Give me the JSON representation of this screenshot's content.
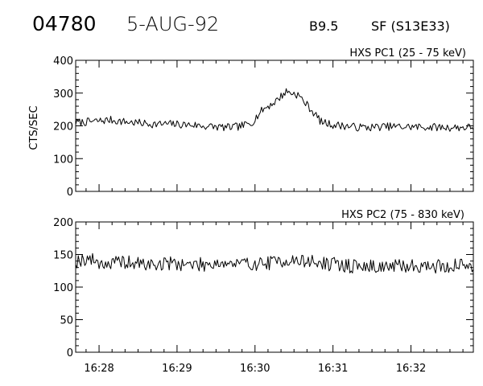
{
  "header": {
    "event_number": "04780",
    "date": "5-AUG-92",
    "goes_class": "B9.5",
    "location": "SF (S13E33)"
  },
  "chart_data": [
    {
      "type": "line",
      "title": "HXS PC1 (25 - 75 keV)",
      "ylabel": "CTS/SEC",
      "ylim": [
        0,
        400
      ],
      "yticks": [
        "0",
        "100",
        "200",
        "300",
        "400"
      ],
      "xlim": [
        "16:27:42",
        "16:32:48"
      ],
      "xticks": [
        "16:28",
        "16:29",
        "16:30",
        "16:31",
        "16:32"
      ],
      "series": [
        {
          "x": [
            "16:27:42",
            "16:27:51",
            "16:28:00",
            "16:28:09",
            "16:28:18",
            "16:28:27",
            "16:28:36",
            "16:28:45",
            "16:28:54",
            "16:29:03",
            "16:29:12",
            "16:29:21",
            "16:29:30",
            "16:29:39",
            "16:29:48",
            "16:29:57",
            "16:30:06",
            "16:30:15",
            "16:30:24",
            "16:30:33",
            "16:30:42",
            "16:30:51",
            "16:31:00",
            "16:31:09",
            "16:31:18",
            "16:31:27",
            "16:31:36",
            "16:31:45",
            "16:31:54",
            "16:32:03",
            "16:32:12",
            "16:32:21",
            "16:32:30",
            "16:32:39",
            "16:32:48"
          ],
          "values": [
            210,
            212,
            215,
            218,
            213,
            210,
            207,
            205,
            206,
            204,
            203,
            199,
            197,
            195,
            198,
            208,
            250,
            272,
            305,
            295,
            255,
            212,
            203,
            200,
            196,
            195,
            197,
            198,
            197,
            197,
            196,
            196,
            195,
            195,
            196
          ]
        }
      ]
    },
    {
      "type": "line",
      "title": "HXS PC2 (75 - 830 keV)",
      "ylabel": "",
      "ylim": [
        0,
        200
      ],
      "yticks": [
        "0",
        "50",
        "100",
        "150",
        "200"
      ],
      "xlim": [
        "16:27:42",
        "16:32:48"
      ],
      "xticks": [
        "16:28",
        "16:29",
        "16:30",
        "16:31",
        "16:32"
      ],
      "series": [
        {
          "x": [
            "16:27:42",
            "16:27:51",
            "16:28:00",
            "16:28:09",
            "16:28:18",
            "16:28:27",
            "16:28:36",
            "16:28:45",
            "16:28:54",
            "16:29:03",
            "16:29:12",
            "16:29:21",
            "16:29:30",
            "16:29:39",
            "16:29:48",
            "16:29:57",
            "16:30:06",
            "16:30:15",
            "16:30:24",
            "16:30:33",
            "16:30:42",
            "16:30:51",
            "16:31:00",
            "16:31:09",
            "16:31:18",
            "16:31:27",
            "16:31:36",
            "16:31:45",
            "16:31:54",
            "16:32:03",
            "16:32:12",
            "16:32:21",
            "16:32:30",
            "16:32:39",
            "16:32:48"
          ],
          "values": [
            140,
            144,
            138,
            135,
            139,
            136,
            135,
            134,
            137,
            136,
            134,
            135,
            138,
            136,
            135,
            136,
            136,
            138,
            142,
            139,
            140,
            136,
            135,
            133,
            132,
            131,
            132,
            131,
            132,
            133,
            132,
            132,
            132,
            133,
            134
          ]
        }
      ]
    }
  ]
}
